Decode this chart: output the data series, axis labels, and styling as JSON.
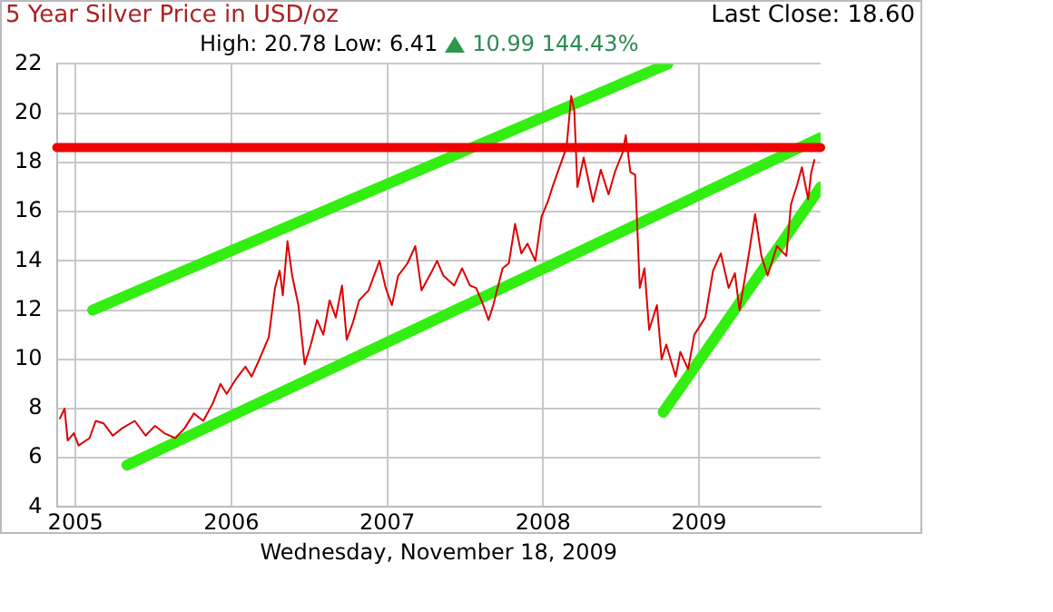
{
  "chart_data": {
    "type": "line",
    "title": "5 Year Silver Price in USD/oz",
    "subtitle": "High: 20.78 Low: 6.41",
    "xlabel": "Wednesday, November 18, 2009",
    "annotations": [
      "10.99 144.43%",
      "Last Close: 18.60"
    ],
    "xlim": [
      2004.88,
      2009.78
    ],
    "xticks": [
      2005,
      2006,
      2007,
      2008,
      2009
    ],
    "ylim": [
      4,
      22
    ],
    "yticks": [
      4,
      6,
      8,
      10,
      12,
      14,
      16,
      18,
      20,
      22
    ],
    "grid": true,
    "legend": false,
    "marker": "none",
    "line_style": "solid",
    "ref_lines": [
      {
        "axis": "y",
        "value": 18.6,
        "color": "#ee0000"
      }
    ],
    "series": [
      {
        "color": "#dd0000",
        "x": [
          2004.9,
          2004.93,
          2004.95,
          2004.99,
          2005.02,
          2005.09,
          2005.13,
          2005.18,
          2005.24,
          2005.3,
          2005.38,
          2005.45,
          2005.51,
          2005.57,
          2005.64,
          2005.7,
          2005.76,
          2005.82,
          2005.88,
          2005.93,
          2005.97,
          2006.03,
          2006.09,
          2006.13,
          2006.18,
          2006.24,
          2006.28,
          2006.31,
          2006.33,
          2006.36,
          2006.39,
          2006.43,
          2006.47,
          2006.51,
          2006.55,
          2006.59,
          2006.63,
          2006.67,
          2006.71,
          2006.74,
          2006.78,
          2006.82,
          2006.88,
          2006.95,
          2006.99,
          2007.03,
          2007.07,
          2007.13,
          2007.18,
          2007.22,
          2007.28,
          2007.32,
          2007.36,
          2007.43,
          2007.48,
          2007.53,
          2007.57,
          2007.61,
          2007.65,
          2007.68,
          2007.74,
          2007.78,
          2007.82,
          2007.86,
          2007.9,
          2007.95,
          2007.99,
          2008.03,
          2008.06,
          2008.11,
          2008.15,
          2008.18,
          2008.2,
          2008.22,
          2008.26,
          2008.32,
          2008.37,
          2008.42,
          2008.46,
          2008.51,
          2008.53,
          2008.56,
          2008.59,
          2008.62,
          2008.65,
          2008.68,
          2008.73,
          2008.76,
          2008.79,
          2008.85,
          2008.88,
          2008.93,
          2008.97,
          2009.04,
          2009.09,
          2009.14,
          2009.19,
          2009.23,
          2009.26,
          2009.31,
          2009.36,
          2009.4,
          2009.44,
          2009.5,
          2009.56,
          2009.59,
          2009.63,
          2009.66,
          2009.7,
          2009.72,
          2009.74
        ],
        "values": [
          7.6,
          8.0,
          6.7,
          7.0,
          6.5,
          6.8,
          7.5,
          7.4,
          6.9,
          7.2,
          7.5,
          6.9,
          7.3,
          7.0,
          6.8,
          7.2,
          7.8,
          7.5,
          8.2,
          9.0,
          8.6,
          9.2,
          9.7,
          9.3,
          10.0,
          10.9,
          12.9,
          13.6,
          12.6,
          14.8,
          13.4,
          12.2,
          9.8,
          10.6,
          11.6,
          11.0,
          12.4,
          11.7,
          13.0,
          10.8,
          11.5,
          12.4,
          12.8,
          14.0,
          12.9,
          12.2,
          13.4,
          13.9,
          14.6,
          12.8,
          13.5,
          14.0,
          13.4,
          13.0,
          13.7,
          13.0,
          12.9,
          12.3,
          11.6,
          12.2,
          13.7,
          13.9,
          15.5,
          14.3,
          14.7,
          14.0,
          15.8,
          16.4,
          17.0,
          17.9,
          18.6,
          20.7,
          20.1,
          17.0,
          18.2,
          16.4,
          17.7,
          16.7,
          17.6,
          18.4,
          19.1,
          17.6,
          17.5,
          12.9,
          13.7,
          11.2,
          12.2,
          10.0,
          10.6,
          9.3,
          10.3,
          9.6,
          11.0,
          11.7,
          13.6,
          14.3,
          12.9,
          13.5,
          12.0,
          13.9,
          15.9,
          14.2,
          13.4,
          14.6,
          14.2,
          16.3,
          17.1,
          17.8,
          16.5,
          17.6,
          18.1
        ]
      },
      {
        "color": "#33ee11",
        "x": [
          2005.11,
          2008.8
        ],
        "values": [
          12.0,
          22.0
        ]
      },
      {
        "color": "#33ee11",
        "x": [
          2005.33,
          2009.78
        ],
        "values": [
          5.7,
          19.0
        ]
      },
      {
        "color": "#33ee11",
        "x": [
          2008.77,
          2009.78
        ],
        "values": [
          7.85,
          17.0
        ]
      }
    ]
  }
}
